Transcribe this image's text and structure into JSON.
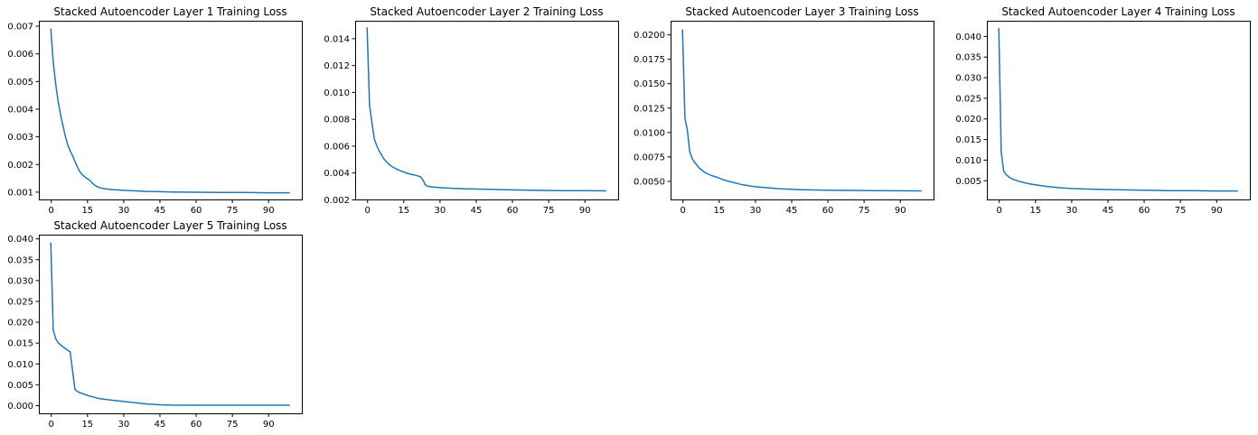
{
  "chart_data": [
    {
      "type": "line",
      "title": "Stacked Autoencoder Layer 1 Training Loss",
      "xlabel": "",
      "ylabel": "",
      "xlim": [
        -4.95,
        103.95
      ],
      "ylim": [
        0.00072,
        0.00718
      ],
      "xticks": [
        0,
        15,
        30,
        45,
        60,
        75,
        90
      ],
      "yticks": [
        0.001,
        0.002,
        0.003,
        0.004,
        0.005,
        0.006,
        0.007
      ],
      "ytick_labels": [
        "0.001",
        "0.002",
        "0.003",
        "0.004",
        "0.005",
        "0.006",
        "0.007"
      ],
      "grid": false,
      "series": [
        {
          "color": "#1f77b4",
          "x": [
            0,
            1,
            2,
            3,
            4,
            5,
            6,
            7,
            8,
            9,
            10,
            11,
            12,
            13,
            14,
            15,
            16,
            17,
            18,
            19,
            20,
            22,
            25,
            30,
            35,
            40,
            45,
            50,
            60,
            70,
            80,
            90,
            99
          ],
          "y": [
            0.0069,
            0.0057,
            0.0049,
            0.0043,
            0.0038,
            0.0034,
            0.003,
            0.0027,
            0.00248,
            0.0023,
            0.0021,
            0.0019,
            0.00172,
            0.00162,
            0.00154,
            0.00148,
            0.00142,
            0.00133,
            0.00125,
            0.00119,
            0.00115,
            0.00111,
            0.00108,
            0.00105,
            0.00103,
            0.00101,
            0.001,
            0.00099,
            0.00098,
            0.00097,
            0.00097,
            0.00096,
            0.00096
          ]
        }
      ]
    },
    {
      "type": "line",
      "title": "Stacked Autoencoder Layer 2 Training Loss",
      "xlabel": "",
      "ylabel": "",
      "xlim": [
        -4.95,
        103.95
      ],
      "ylim": [
        0.002,
        0.0153
      ],
      "xticks": [
        0,
        15,
        30,
        45,
        60,
        75,
        90
      ],
      "yticks": [
        0.002,
        0.004,
        0.006,
        0.008,
        0.01,
        0.012,
        0.014
      ],
      "ytick_labels": [
        "0.002",
        "0.004",
        "0.006",
        "0.008",
        "0.010",
        "0.012",
        "0.014"
      ],
      "grid": false,
      "series": [
        {
          "color": "#1f77b4",
          "x": [
            0,
            1,
            2,
            3,
            4,
            5,
            6,
            7,
            8,
            9,
            10,
            12,
            14,
            16,
            18,
            20,
            22,
            23,
            24,
            25,
            27,
            30,
            35,
            40,
            50,
            60,
            70,
            80,
            90,
            99
          ],
          "y": [
            0.0148,
            0.009,
            0.0077,
            0.0065,
            0.006,
            0.0056,
            0.0053,
            0.005,
            0.0048,
            0.00462,
            0.00448,
            0.00428,
            0.00412,
            0.00398,
            0.00388,
            0.0038,
            0.0037,
            0.0035,
            0.0031,
            0.00298,
            0.00292,
            0.00288,
            0.00283,
            0.0028,
            0.00275,
            0.00271,
            0.00268,
            0.00266,
            0.00265,
            0.00264
          ]
        }
      ]
    },
    {
      "type": "line",
      "title": "Stacked Autoencoder Layer 3 Training Loss",
      "xlabel": "",
      "ylabel": "",
      "xlim": [
        -4.95,
        103.95
      ],
      "ylim": [
        0.0031,
        0.0214
      ],
      "xticks": [
        0,
        15,
        30,
        45,
        60,
        75,
        90
      ],
      "yticks": [
        0.005,
        0.0075,
        0.01,
        0.0125,
        0.015,
        0.0175,
        0.02
      ],
      "ytick_labels": [
        "0.0050",
        "0.0075",
        "0.0100",
        "0.0125",
        "0.0150",
        "0.0175",
        "0.0200"
      ],
      "grid": false,
      "series": [
        {
          "color": "#1f77b4",
          "x": [
            0,
            1,
            2,
            3,
            4,
            5,
            6,
            7,
            8,
            9,
            10,
            12,
            14,
            16,
            18,
            20,
            25,
            30,
            40,
            50,
            60,
            70,
            80,
            90,
            99
          ],
          "y": [
            0.0205,
            0.0114,
            0.0102,
            0.008,
            0.0073,
            0.0069,
            0.0066,
            0.0063,
            0.0061,
            0.0059,
            0.00578,
            0.00555,
            0.0054,
            0.0052,
            0.00503,
            0.0049,
            0.0046,
            0.0044,
            0.0042,
            0.0041,
            0.00405,
            0.00402,
            0.004,
            0.00399,
            0.00398
          ]
        }
      ]
    },
    {
      "type": "line",
      "title": "Stacked Autoencoder Layer 4 Training Loss",
      "xlabel": "",
      "ylabel": "",
      "xlim": [
        -4.95,
        103.95
      ],
      "ylim": [
        0.00035,
        0.0437
      ],
      "xticks": [
        0,
        15,
        30,
        45,
        60,
        75,
        90
      ],
      "yticks": [
        0.005,
        0.01,
        0.015,
        0.02,
        0.025,
        0.03,
        0.035,
        0.04
      ],
      "ytick_labels": [
        "0.005",
        "0.010",
        "0.015",
        "0.020",
        "0.025",
        "0.030",
        "0.035",
        "0.040"
      ],
      "grid": false,
      "series": [
        {
          "color": "#1f77b4",
          "x": [
            0,
            1,
            2,
            3,
            4,
            5,
            6,
            8,
            10,
            12,
            15,
            20,
            25,
            30,
            40,
            50,
            60,
            70,
            80,
            90,
            99
          ],
          "y": [
            0.0419,
            0.0118,
            0.0072,
            0.0064,
            0.0059,
            0.0055,
            0.0052,
            0.0048,
            0.0045,
            0.0042,
            0.0039,
            0.0035,
            0.0032,
            0.003,
            0.0028,
            0.0027,
            0.0026,
            0.0025,
            0.0025,
            0.0024,
            0.0024
          ]
        }
      ]
    },
    {
      "type": "line",
      "title": "Stacked Autoencoder Layer 5 Training Loss",
      "xlabel": "",
      "ylabel": "",
      "xlim": [
        -4.95,
        103.95
      ],
      "ylim": [
        -0.00195,
        0.0409
      ],
      "xticks": [
        0,
        15,
        30,
        45,
        60,
        75,
        90
      ],
      "yticks": [
        0.0,
        0.005,
        0.01,
        0.015,
        0.02,
        0.025,
        0.03,
        0.035,
        0.04
      ],
      "ytick_labels": [
        "0.000",
        "0.005",
        "0.010",
        "0.015",
        "0.020",
        "0.025",
        "0.030",
        "0.035",
        "0.040"
      ],
      "grid": false,
      "series": [
        {
          "color": "#1f77b4",
          "x": [
            0,
            1,
            2,
            3,
            4,
            5,
            6,
            7,
            8,
            9,
            10,
            11,
            12,
            14,
            16,
            18,
            20,
            25,
            30,
            35,
            40,
            45,
            50,
            55,
            60,
            70,
            80,
            90,
            99
          ],
          "y": [
            0.039,
            0.018,
            0.016,
            0.015,
            0.0145,
            0.014,
            0.0136,
            0.0132,
            0.0128,
            0.0083,
            0.0038,
            0.0033,
            0.003,
            0.0026,
            0.0022,
            0.0019,
            0.0016,
            0.0012,
            0.0009,
            0.0006,
            0.0003,
            0.0001,
            3e-05,
            0.0,
            0.0,
            0.0,
            0.0,
            0.0,
            0.0
          ]
        }
      ]
    }
  ]
}
